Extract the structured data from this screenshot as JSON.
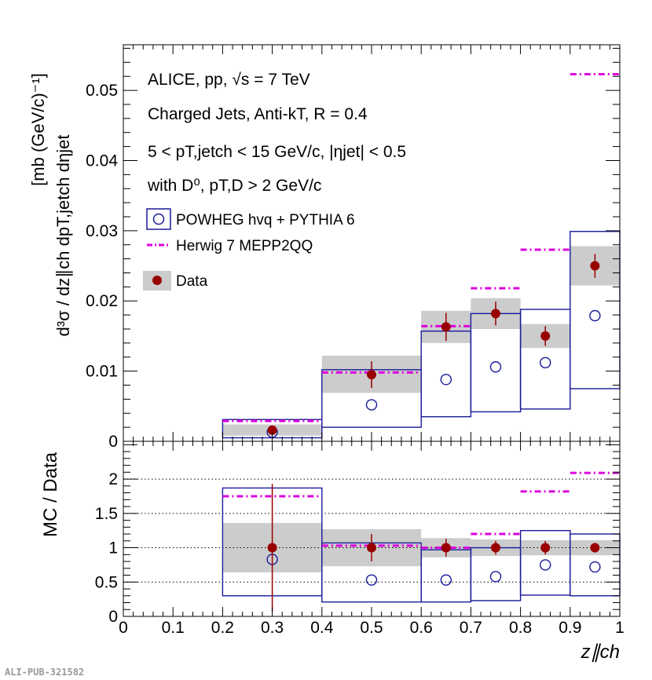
{
  "chart_data": [
    {
      "type": "scatter",
      "panel": "top",
      "ylabel_main": "d³σ / dz∥ch dpT,jetch dηjet",
      "ylabel_unit": "[mb (GeV/c)⁻¹]",
      "ylim": [
        0,
        0.0565
      ],
      "yticks": [
        "0",
        "0.01",
        "0.02",
        "0.03",
        "0.04",
        "0.05"
      ],
      "xlim": [
        0,
        1
      ],
      "annotations": [
        "ALICE, pp, √s = 7 TeV",
        "Charged Jets, Anti-kT, R = 0.4",
        "5 < pT,jetch < 15 GeV/c, |ηjet| < 0.5",
        "with D⁰, pT,D > 2 GeV/c"
      ],
      "legend": {
        "placement": "upper-left",
        "entries": [
          "POWHEG hvq + PYTHIA 6",
          "Herwig 7 MEPP2QQ",
          "Data"
        ]
      },
      "bins": [
        {
          "lo": 0.2,
          "hi": 0.4,
          "x": 0.3
        },
        {
          "lo": 0.4,
          "hi": 0.6,
          "x": 0.5
        },
        {
          "lo": 0.6,
          "hi": 0.7,
          "x": 0.65
        },
        {
          "lo": 0.7,
          "hi": 0.8,
          "x": 0.75
        },
        {
          "lo": 0.8,
          "hi": 0.9,
          "x": 0.85
        },
        {
          "lo": 0.9,
          "hi": 1.0,
          "x": 0.95
        }
      ],
      "series": [
        {
          "name": "Data",
          "color": "#990000",
          "values": [
            0.0016,
            0.0095,
            0.0163,
            0.0182,
            0.015,
            0.025
          ],
          "stat_err": [
            0.0005,
            0.0019,
            0.002,
            0.0017,
            0.0014,
            0.0017
          ],
          "syst_lo": [
            0.0008,
            0.0069,
            0.014,
            0.016,
            0.0133,
            0.0222
          ],
          "syst_hi": [
            0.0024,
            0.0122,
            0.0186,
            0.0204,
            0.0167,
            0.0278
          ]
        },
        {
          "name": "POWHEG hvq + PYTHIA 6",
          "color": "#1a1a9a",
          "values": [
            0.0013,
            0.0052,
            0.0088,
            0.0106,
            0.0112,
            0.0179
          ],
          "band_lo": [
            0.0005,
            0.002,
            0.0035,
            0.0042,
            0.0046,
            0.0075
          ],
          "band_hi": [
            0.0031,
            0.0102,
            0.0157,
            0.0182,
            0.0188,
            0.0299
          ]
        },
        {
          "name": "Herwig 7 MEPP2QQ",
          "color": "#dd00dd",
          "values": [
            0.0029,
            0.0098,
            0.0164,
            0.0218,
            0.0273,
            0.0523
          ]
        }
      ]
    },
    {
      "type": "scatter",
      "panel": "bottom",
      "ylabel": "MC / Data",
      "xlabel": "z∥ch",
      "ylim": [
        0,
        2.55
      ],
      "yticks": [
        "0",
        "0.5",
        "1",
        "1.5",
        "2"
      ],
      "xlim": [
        0,
        1
      ],
      "xticks": [
        "0",
        "0.1",
        "0.2",
        "0.3",
        "0.4",
        "0.5",
        "0.6",
        "0.7",
        "0.8",
        "0.9",
        "1"
      ],
      "reference_lines": [
        0.5,
        1,
        1.5,
        2
      ],
      "series": [
        {
          "name": "Data",
          "color": "#990000",
          "values": [
            1,
            1,
            1,
            1,
            1,
            1
          ],
          "stat_err": [
            0.93,
            0.2,
            0.13,
            0.1,
            0.1,
            0.07
          ],
          "syst_lo": [
            0.64,
            0.73,
            0.86,
            0.88,
            0.89,
            0.89
          ],
          "syst_hi": [
            1.36,
            1.27,
            1.14,
            1.12,
            1.11,
            1.11
          ]
        },
        {
          "name": "POWHEG hvq + PYTHIA 6",
          "color": "#1a1a9a",
          "values": [
            0.83,
            0.53,
            0.53,
            0.58,
            0.75,
            0.72
          ],
          "band_lo": [
            0.3,
            0.21,
            0.21,
            0.23,
            0.31,
            0.3
          ],
          "band_hi": [
            1.87,
            1.07,
            0.97,
            1.0,
            1.25,
            1.2
          ]
        },
        {
          "name": "Herwig 7 MEPP2QQ",
          "color": "#dd00dd",
          "values": [
            1.75,
            1.03,
            1.0,
            1.2,
            1.82,
            2.09
          ]
        }
      ]
    }
  ],
  "watermark": "ALI-PUB-321582"
}
